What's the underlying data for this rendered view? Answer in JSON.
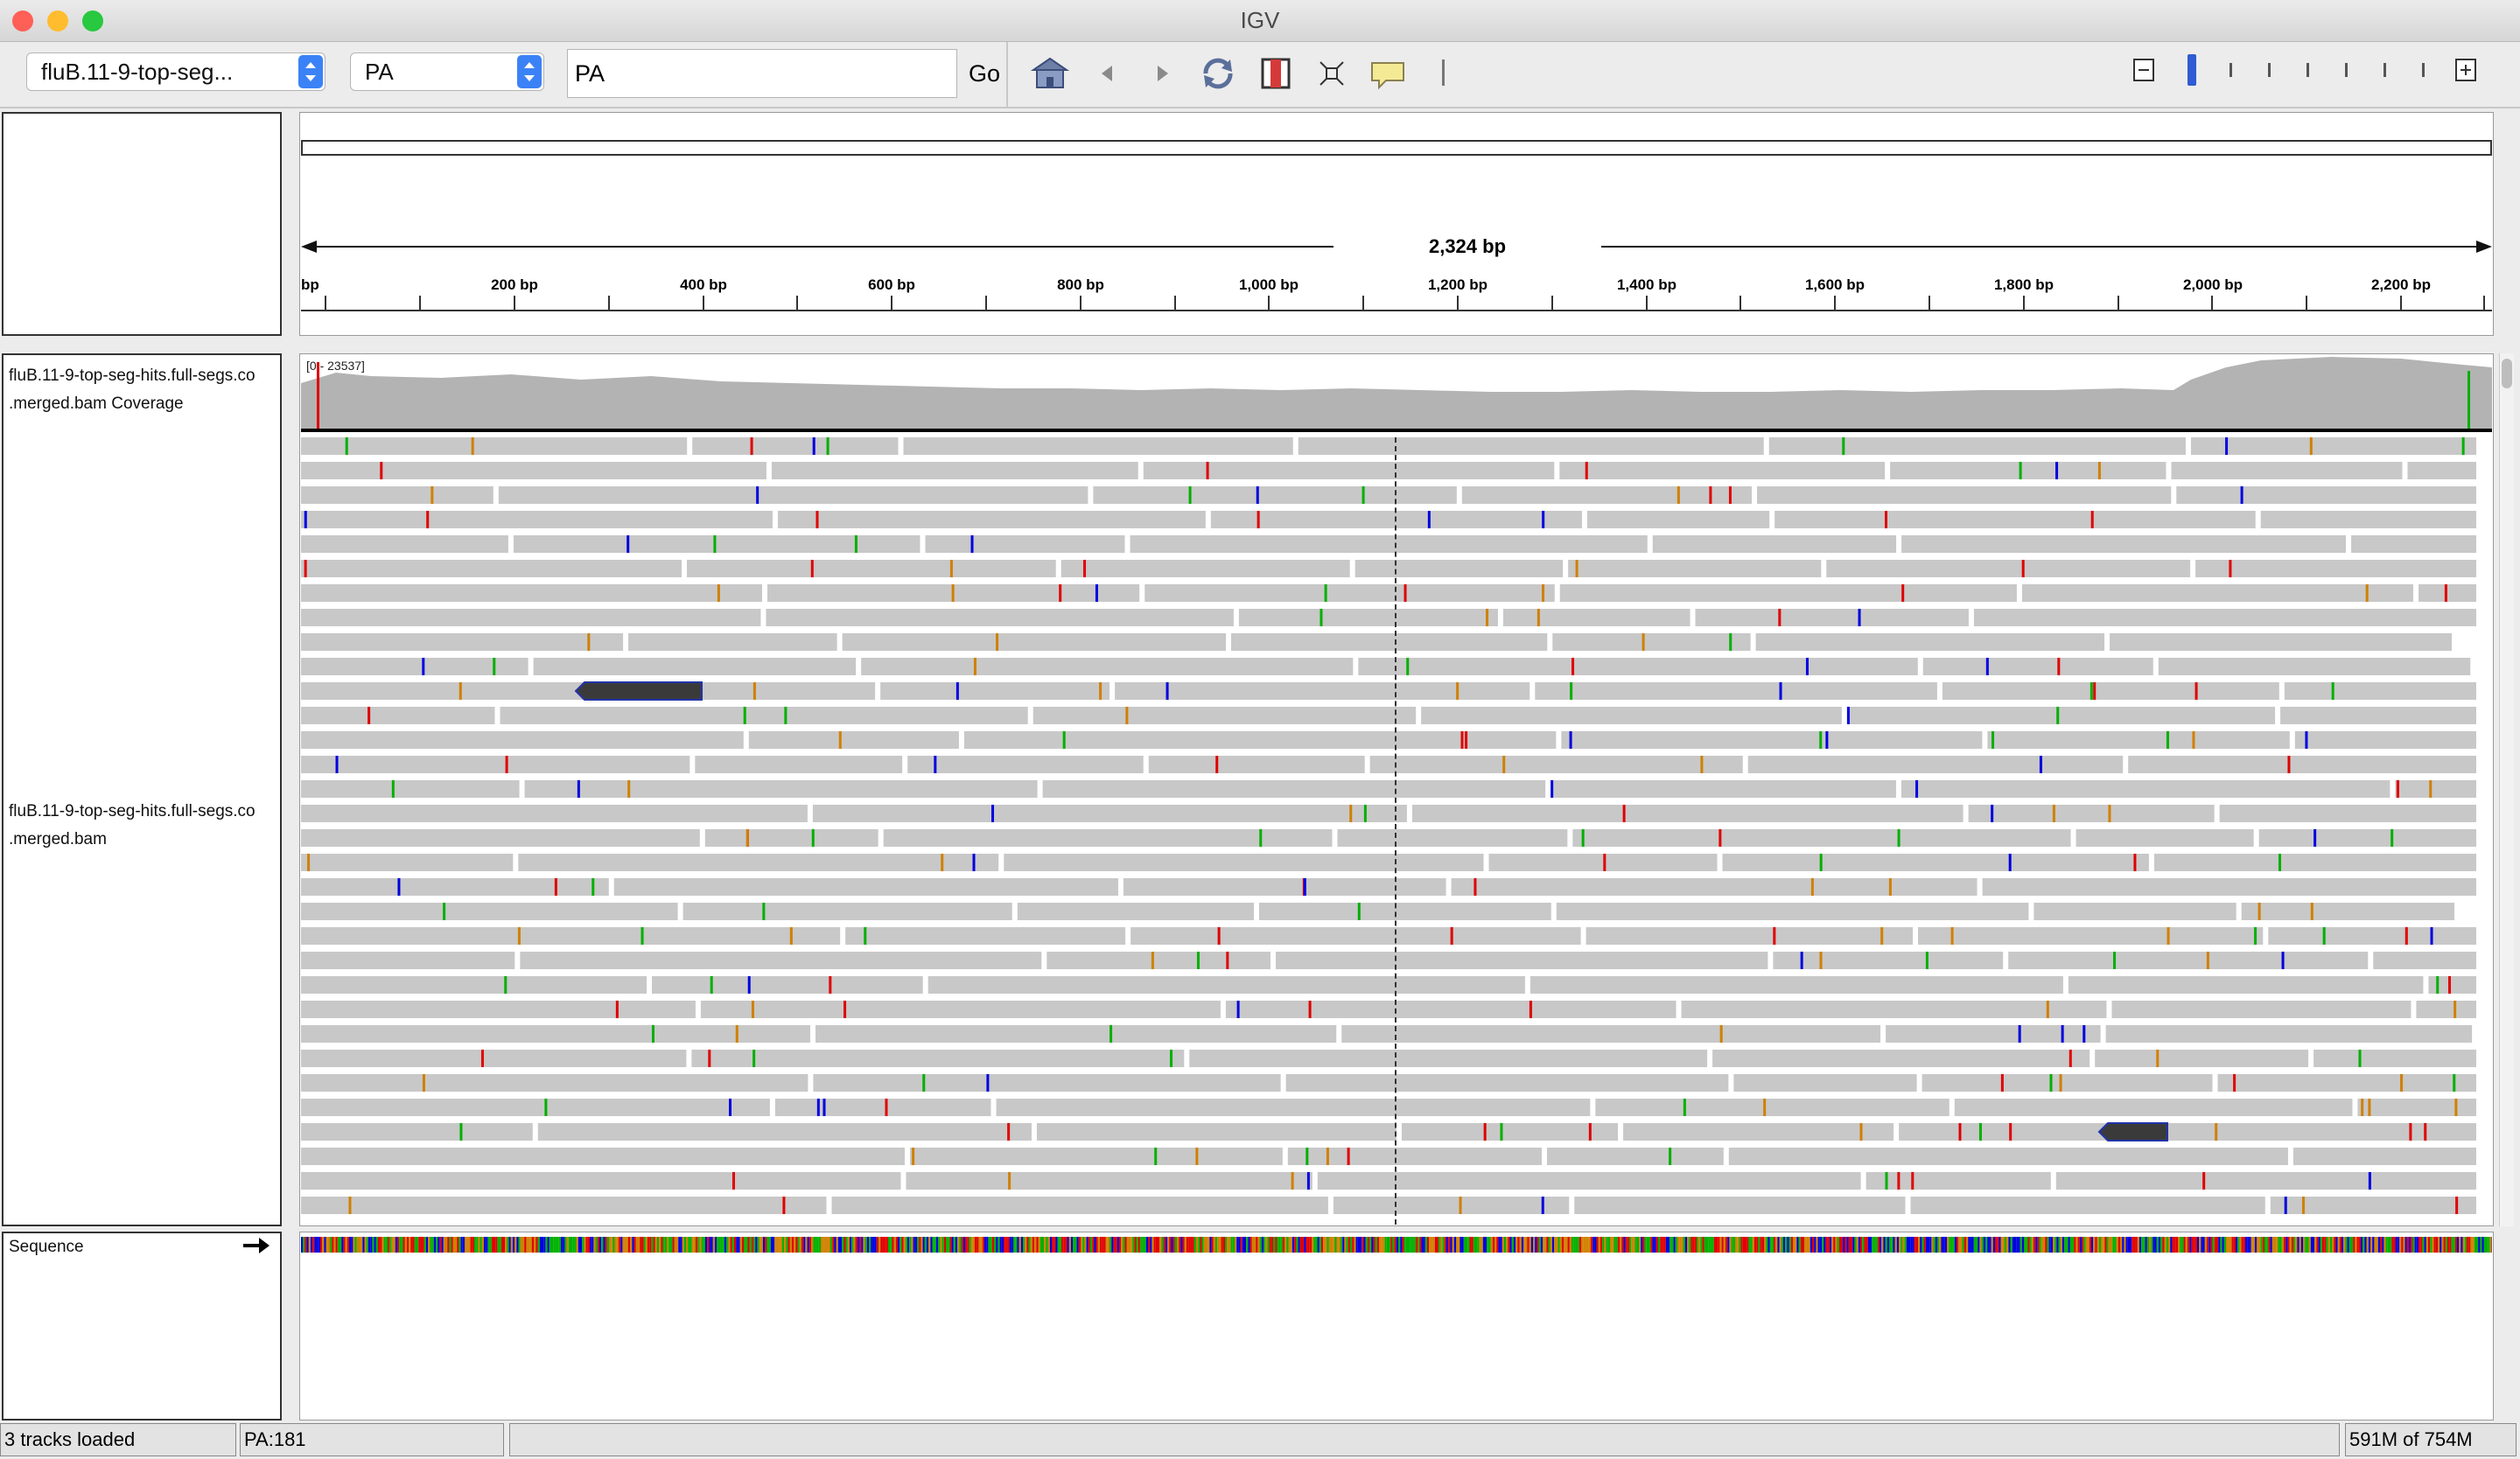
{
  "window": {
    "title": "IGV"
  },
  "toolbar": {
    "genome_select": "fluB.11-9-top-seg...",
    "chromosome_select": "PA",
    "locus_value": "PA",
    "go_label": "Go",
    "icons": [
      "home-icon",
      "back-icon",
      "forward-icon",
      "refresh-icon",
      "roi-icon",
      "fit-icon",
      "popup-info-icon"
    ]
  },
  "ruler": {
    "span_label": "2,324 bp",
    "ticks": [
      "bp",
      "200 bp",
      "400 bp",
      "600 bp",
      "800 bp",
      "1,000 bp",
      "1,200 bp",
      "1,400 bp",
      "1,600 bp",
      "1,800 bp",
      "2,000 bp",
      "2,200 bp"
    ]
  },
  "tracks": {
    "coverage": {
      "name_line1": "fluB.11-9-top-seg-hits.full-segs.co",
      "name_line2": ".merged.bam Coverage",
      "range": "[0 - 23537]"
    },
    "alignments": {
      "name_line1": "fluB.11-9-top-seg-hits.full-segs.co",
      "name_line2": ".merged.bam"
    },
    "sequence": {
      "name": "Sequence"
    }
  },
  "status": {
    "tracks_loaded": "3 tracks loaded",
    "position": "PA:181",
    "message": "",
    "memory": "591M of 754M"
  },
  "colors": {
    "read": "#c8c8c8",
    "coverage": "#b0b0b0",
    "A": "#00b000",
    "C": "#0000e0",
    "G": "#d08000",
    "T": "#e00000"
  }
}
